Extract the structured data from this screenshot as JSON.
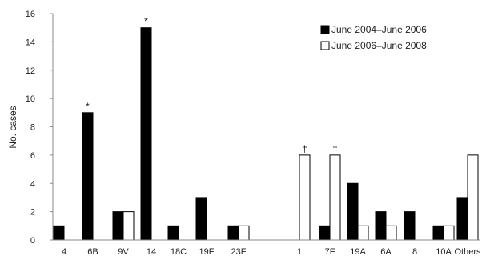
{
  "chart_data": {
    "type": "bar",
    "title": "",
    "xlabel": "",
    "ylabel": "No. cases",
    "ylim": [
      0,
      16
    ],
    "yticks": [
      0,
      2,
      4,
      6,
      8,
      10,
      12,
      14,
      16
    ],
    "grid": false,
    "legend_position": "top-right",
    "categories": [
      "4",
      "6B",
      "9V",
      "14",
      "18C",
      "19F",
      "23F",
      "",
      "1",
      "7F",
      "19A",
      "6A",
      "8",
      "10A",
      "Others"
    ],
    "series": [
      {
        "name": "June 2004–June 2006",
        "color": "#000000",
        "fill": "solid",
        "values": [
          1,
          9,
          2,
          15,
          1,
          3,
          1,
          null,
          0,
          1,
          4,
          2,
          2,
          1,
          3
        ]
      },
      {
        "name": "June 2006–June 2008",
        "color": "#ffffff",
        "fill": "hollow",
        "values": [
          0,
          0,
          2,
          0,
          0,
          0,
          1,
          null,
          6,
          6,
          1,
          1,
          0,
          1,
          6
        ]
      }
    ],
    "annotations": [
      {
        "category": "6B",
        "series": 0,
        "text": "*"
      },
      {
        "category": "14",
        "series": 0,
        "text": "*"
      },
      {
        "category": "1",
        "series": 1,
        "text": "†"
      },
      {
        "category": "7F",
        "series": 1,
        "text": "†"
      }
    ]
  }
}
